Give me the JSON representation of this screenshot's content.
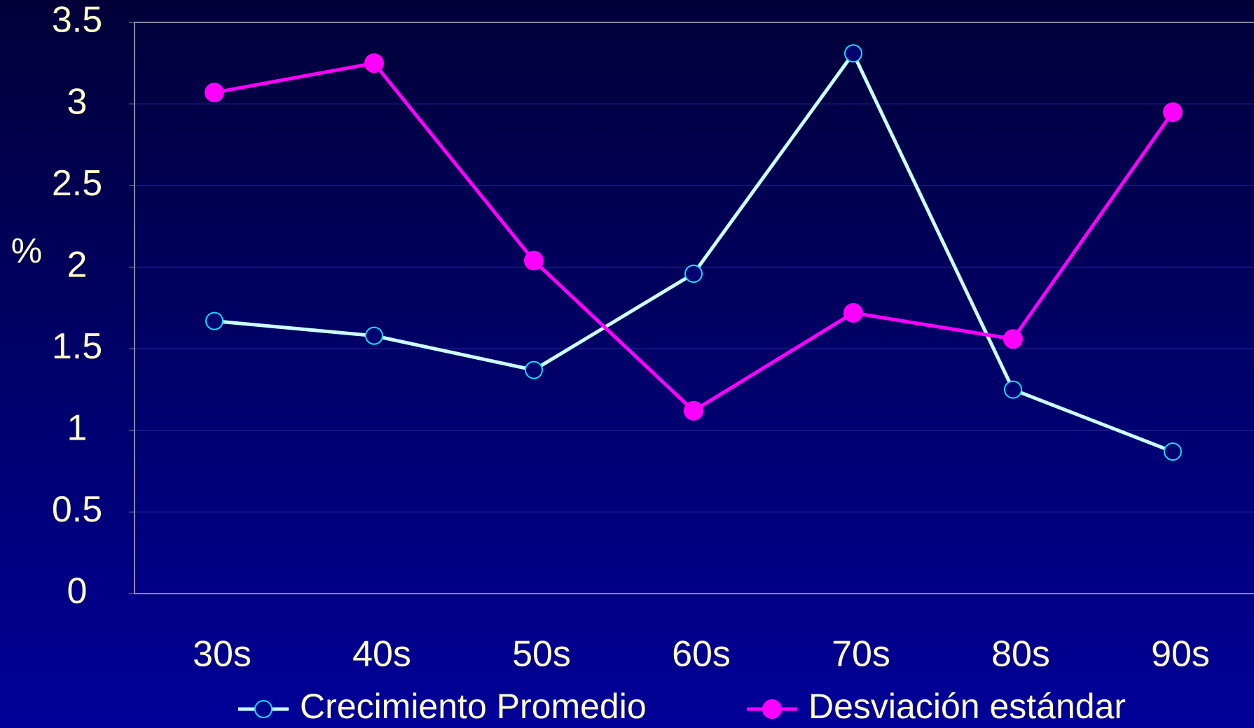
{
  "chart_data": {
    "type": "line",
    "y_label": "%",
    "categories": [
      "30s",
      "40s",
      "50s",
      "60s",
      "70s",
      "80s",
      "90s"
    ],
    "series": [
      {
        "name": "Crecimiento Promedio",
        "color": "#ccffff",
        "marker": "open",
        "values": [
          1.67,
          1.58,
          1.37,
          1.96,
          3.31,
          1.25,
          0.87
        ]
      },
      {
        "name": "Desviación estándar",
        "color": "#ff00ff",
        "marker": "filled",
        "values": [
          3.07,
          3.25,
          2.04,
          1.12,
          1.72,
          1.56,
          2.95
        ]
      }
    ],
    "ylim": [
      0,
      3.5
    ],
    "yticks": [
      0,
      0.5,
      1,
      1.5,
      2,
      2.5,
      3,
      3.5
    ],
    "grid": true,
    "legend": "bottom"
  }
}
